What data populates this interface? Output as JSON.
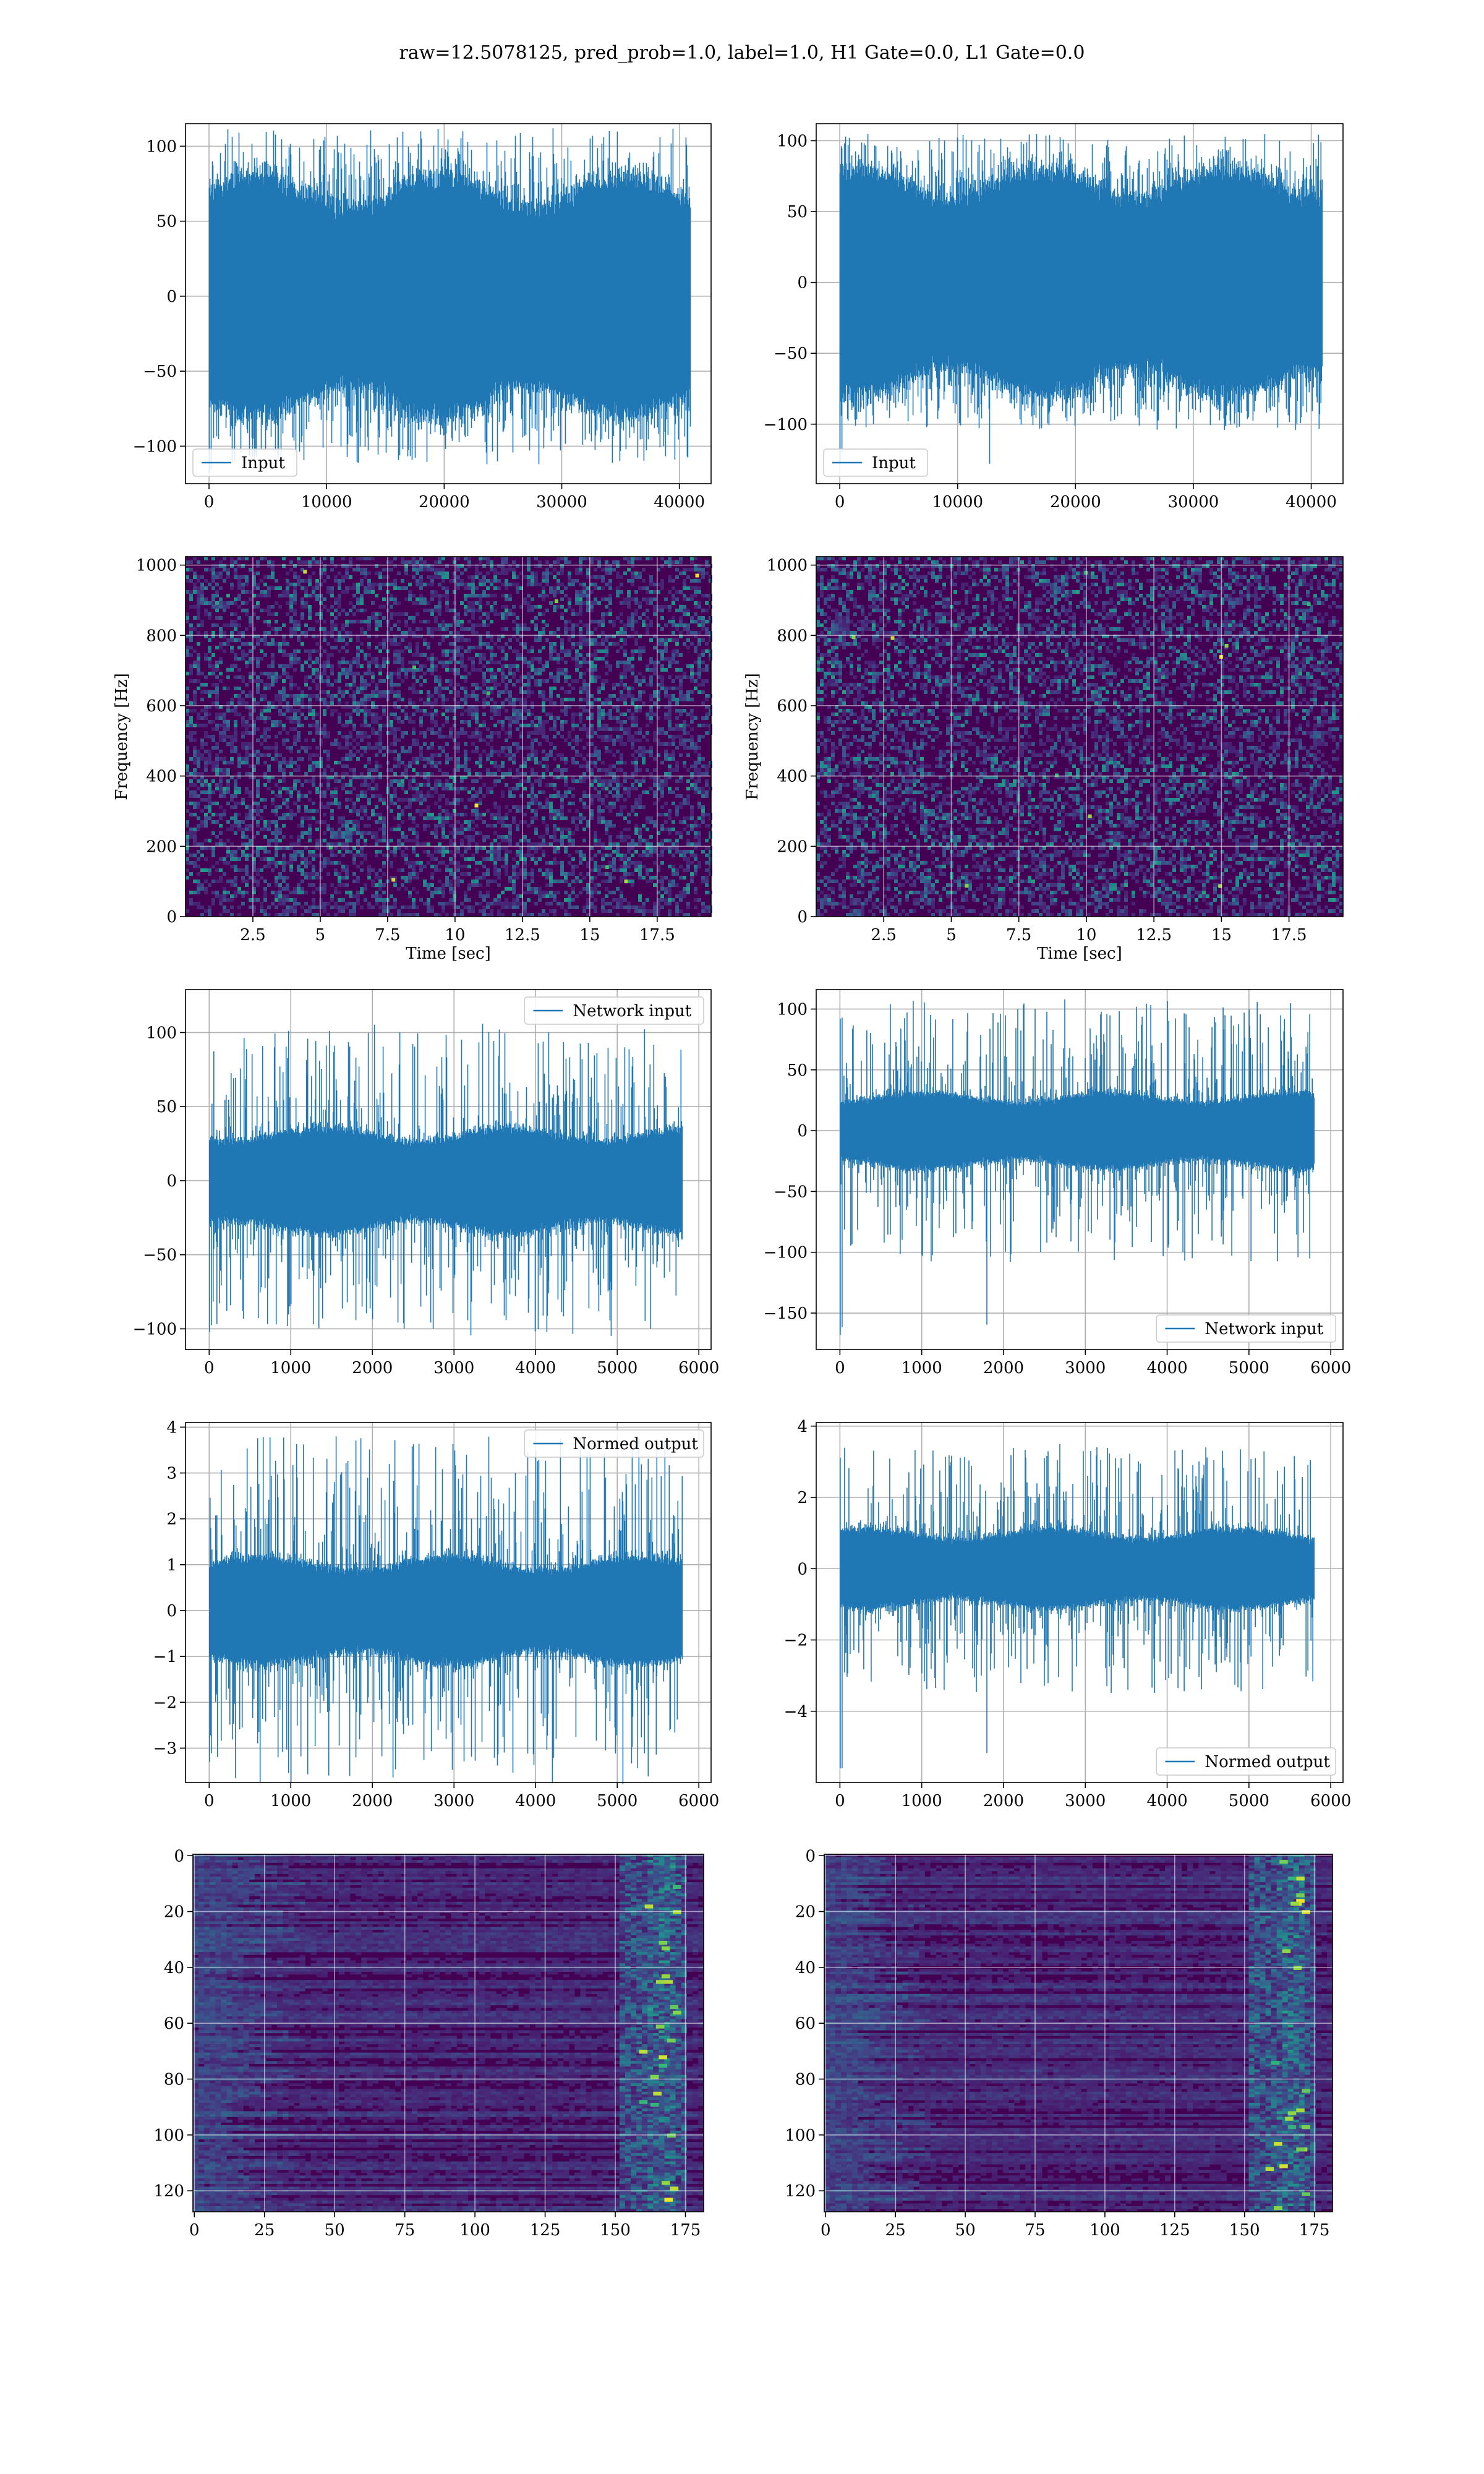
{
  "suptitle": "raw=12.5078125, pred_prob=1.0, label=1.0, H1 Gate=0.0, L1 Gate=0.0",
  "colors": {
    "line": "#1f77b4",
    "grid": "#b0b0b0",
    "viridis_low": "#440154",
    "viridis_mid": "#21918c",
    "viridis_high": "#fde725"
  },
  "chart_data": [
    {
      "id": "input-h1",
      "type": "line",
      "legend": [
        "Input"
      ],
      "legend_loc": "lower left",
      "xlim": [
        -2000,
        42700
      ],
      "ylim": [
        -125,
        115
      ],
      "xticks": [
        0,
        10000,
        20000,
        30000,
        40000
      ],
      "yticks": [
        -100,
        -50,
        0,
        50,
        100
      ],
      "xlabel": "",
      "ylabel": "",
      "series": [
        {
          "n": 40960,
          "x_range": [
            0,
            40960
          ],
          "core_amp": 72,
          "peak_amp": 112,
          "min": -118
        }
      ]
    },
    {
      "id": "input-l1",
      "type": "line",
      "legend": [
        "Input"
      ],
      "legend_loc": "lower left",
      "xlim": [
        -2000,
        42700
      ],
      "ylim": [
        -142,
        112
      ],
      "xticks": [
        0,
        10000,
        20000,
        30000,
        40000
      ],
      "yticks": [
        -100,
        -50,
        0,
        50,
        100
      ],
      "xlabel": "",
      "ylabel": "",
      "series": [
        {
          "n": 40960,
          "x_range": [
            0,
            40960
          ],
          "core_amp": 72,
          "peak_amp": 105,
          "min": -128
        }
      ]
    },
    {
      "id": "spec-h1",
      "type": "heatmap",
      "cmap": "viridis",
      "xlim": [
        0,
        19.5
      ],
      "ylim": [
        0,
        1024
      ],
      "xticks": [
        2.5,
        5.0,
        7.5,
        10.0,
        12.5,
        15.0,
        17.5
      ],
      "yticks": [
        0,
        200,
        400,
        600,
        800,
        1000
      ],
      "xlabel": "Time [sec]",
      "ylabel": "Frequency [Hz]"
    },
    {
      "id": "spec-l1",
      "type": "heatmap",
      "cmap": "viridis",
      "xlim": [
        0,
        19.5
      ],
      "ylim": [
        0,
        1024
      ],
      "xticks": [
        2.5,
        5.0,
        7.5,
        10.0,
        12.5,
        15.0,
        17.5
      ],
      "yticks": [
        0,
        200,
        400,
        600,
        800,
        1000
      ],
      "xlabel": "Time [sec]",
      "ylabel": "Frequency [Hz]"
    },
    {
      "id": "net-h1",
      "type": "line",
      "legend": [
        "Network input"
      ],
      "legend_loc": "upper right",
      "xlim": [
        -290,
        6150
      ],
      "ylim": [
        -114,
        129
      ],
      "xticks": [
        0,
        1000,
        2000,
        3000,
        4000,
        5000,
        6000
      ],
      "yticks": [
        -100,
        -50,
        0,
        50,
        100
      ],
      "xlabel": "",
      "ylabel": "",
      "series": [
        {
          "n": 5800,
          "x_range": [
            0,
            5800
          ],
          "core_amp": 32,
          "peak_amp": 106,
          "min": -102
        }
      ]
    },
    {
      "id": "net-l1",
      "type": "line",
      "legend": [
        "Network input"
      ],
      "legend_loc": "lower right",
      "xlim": [
        -290,
        6150
      ],
      "ylim": [
        -180,
        116
      ],
      "xticks": [
        0,
        1000,
        2000,
        3000,
        4000,
        5000,
        6000
      ],
      "yticks": [
        -150,
        -100,
        -50,
        0,
        50,
        100
      ],
      "xlabel": "",
      "ylabel": "",
      "series": [
        {
          "n": 5800,
          "x_range": [
            0,
            5800
          ],
          "core_amp": 28,
          "peak_amp": 108,
          "min": -168
        }
      ]
    },
    {
      "id": "norm-h1",
      "type": "line",
      "legend": [
        "Normed output"
      ],
      "legend_loc": "upper right",
      "xlim": [
        -290,
        6150
      ],
      "ylim": [
        -3.75,
        4.1
      ],
      "xticks": [
        0,
        1000,
        2000,
        3000,
        4000,
        5000,
        6000
      ],
      "yticks": [
        -3,
        -2,
        -1,
        0,
        1,
        2,
        3,
        4
      ],
      "xlabel": "",
      "ylabel": "",
      "series": [
        {
          "n": 5800,
          "x_range": [
            0,
            5800
          ],
          "core_amp": 1.05,
          "peak_amp": 3.8,
          "min": -3.3
        }
      ]
    },
    {
      "id": "norm-l1",
      "type": "line",
      "legend": [
        "Normed output"
      ],
      "legend_loc": "lower right",
      "xlim": [
        -290,
        6150
      ],
      "ylim": [
        -6.0,
        4.1
      ],
      "xticks": [
        0,
        1000,
        2000,
        3000,
        4000,
        5000,
        6000
      ],
      "yticks": [
        -4,
        -2,
        0,
        2,
        4
      ],
      "xlabel": "",
      "ylabel": "",
      "series": [
        {
          "n": 5800,
          "x_range": [
            0,
            5800
          ],
          "core_amp": 1.0,
          "peak_amp": 3.5,
          "min": -5.6
        }
      ]
    },
    {
      "id": "feat-h1",
      "type": "heatmap",
      "cmap": "viridis",
      "xlim": [
        -0.5,
        181.5
      ],
      "ylim": [
        127.5,
        -0.5
      ],
      "xticks": [
        0,
        25,
        50,
        75,
        100,
        125,
        150,
        175
      ],
      "yticks": [
        0,
        20,
        40,
        60,
        80,
        100,
        120
      ],
      "xlabel": "",
      "ylabel": ""
    },
    {
      "id": "feat-l1",
      "type": "heatmap",
      "cmap": "viridis",
      "xlim": [
        -0.5,
        181.5
      ],
      "ylim": [
        127.5,
        -0.5
      ],
      "xticks": [
        0,
        25,
        50,
        75,
        100,
        125,
        150,
        175
      ],
      "yticks": [
        0,
        20,
        40,
        60,
        80,
        100,
        120
      ],
      "xlabel": "",
      "ylabel": ""
    }
  ]
}
